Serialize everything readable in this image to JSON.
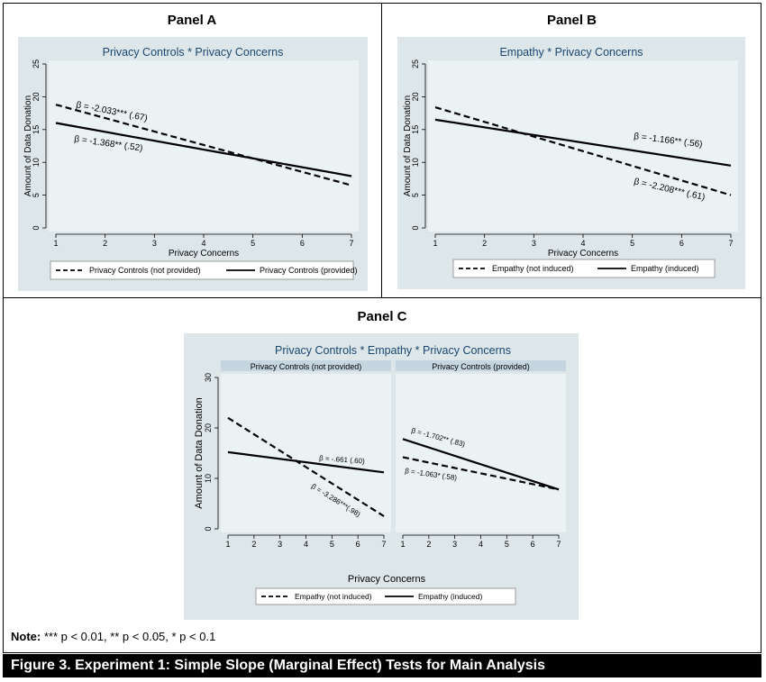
{
  "panels": {
    "a": "Panel A",
    "b": "Panel B",
    "c": "Panel C"
  },
  "note": {
    "label": "Note:",
    "text": "*** p < 0.01, ** p < 0.05, * p < 0.1"
  },
  "caption": "Figure 3. Experiment 1: Simple Slope (Marginal Effect) Tests for Main Analysis",
  "colors": {
    "plot_bg": "#eaf2f3",
    "outer_bg": "#dde7ea",
    "strip_bg": "#c6d6e0",
    "title": "#1a476f"
  },
  "chart_data": [
    {
      "type": "line",
      "panel": "Panel A",
      "title": "Privacy Controls * Privacy Concerns",
      "xlabel": "Privacy Concerns",
      "ylabel": "Amount of Data Donation",
      "xlim": [
        1,
        7
      ],
      "ylim": [
        0,
        25
      ],
      "x_ticks": [
        1,
        2,
        3,
        4,
        5,
        6,
        7
      ],
      "y_ticks": [
        0,
        5,
        10,
        15,
        20,
        25
      ],
      "legend_position": "bottom",
      "series": [
        {
          "name": "Privacy Controls (not provided)",
          "style": "dashed",
          "x": [
            1,
            7
          ],
          "y": [
            18.8,
            6.5
          ],
          "annotation": "β = -2.033*** (.67)"
        },
        {
          "name": "Privacy Controls (provided)",
          "style": "solid",
          "x": [
            1,
            7
          ],
          "y": [
            16.0,
            7.9
          ],
          "annotation": "β = -1.368** (.52)"
        }
      ]
    },
    {
      "type": "line",
      "panel": "Panel B",
      "title": "Empathy * Privacy Concerns",
      "xlabel": "Privacy Concerns",
      "ylabel": "Amount of Data Donation",
      "xlim": [
        1,
        7
      ],
      "ylim": [
        0,
        25
      ],
      "x_ticks": [
        1,
        2,
        3,
        4,
        5,
        6,
        7
      ],
      "y_ticks": [
        0,
        5,
        10,
        15,
        20,
        25
      ],
      "legend_position": "bottom",
      "series": [
        {
          "name": "Empathy (not induced)",
          "style": "dashed",
          "x": [
            1,
            7
          ],
          "y": [
            18.4,
            5.0
          ],
          "annotation": "β = -2.208*** (.61)"
        },
        {
          "name": "Empathy (induced)",
          "style": "solid",
          "x": [
            1,
            7
          ],
          "y": [
            16.5,
            9.5
          ],
          "annotation": "β = -1.166** (.56)"
        }
      ]
    },
    {
      "type": "line",
      "panel": "Panel C",
      "title": "Privacy Controls * Empathy * Privacy Concerns",
      "xlabel": "Privacy Concerns",
      "ylabel": "Amount of Data Donation",
      "xlim": [
        1,
        7
      ],
      "ylim": [
        0,
        30
      ],
      "x_ticks": [
        1,
        2,
        3,
        4,
        5,
        6,
        7
      ],
      "y_ticks": [
        0,
        10,
        20,
        30
      ],
      "legend_position": "bottom",
      "legend": [
        "Empathy (not induced)",
        "Empathy (induced)"
      ],
      "facets": [
        {
          "label": "Privacy Controls (not provided)",
          "series": [
            {
              "name": "Empathy (not induced)",
              "style": "dashed",
              "x": [
                1,
                7
              ],
              "y": [
                22.0,
                2.5
              ],
              "annotation": "β = -3.286***(.98)"
            },
            {
              "name": "Empathy (induced)",
              "style": "solid",
              "x": [
                1,
                7
              ],
              "y": [
                15.2,
                11.2
              ],
              "annotation": "β = -.661 (.60)"
            }
          ]
        },
        {
          "label": "Privacy Controls (provided)",
          "series": [
            {
              "name": "Empathy (not induced)",
              "style": "dashed",
              "x": [
                1,
                7
              ],
              "y": [
                14.2,
                7.8
              ],
              "annotation": "β = -1.063* (.58)"
            },
            {
              "name": "Empathy (induced)",
              "style": "solid",
              "x": [
                1,
                7
              ],
              "y": [
                17.8,
                7.8
              ],
              "annotation": "β = -1.702** (.83)"
            }
          ]
        }
      ]
    }
  ]
}
